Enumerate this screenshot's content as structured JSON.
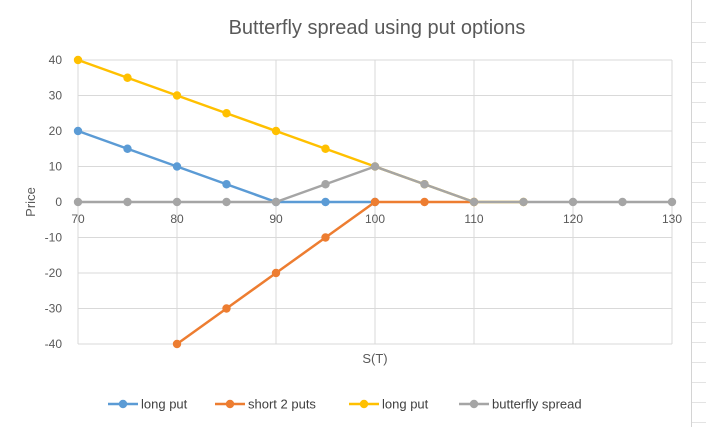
{
  "chart_data": {
    "type": "line",
    "title": "Butterfly spread using put options",
    "xlabel": "S(T)",
    "ylabel": "Price",
    "xlim": [
      70,
      130
    ],
    "ylim": [
      -40,
      40
    ],
    "x_ticks": [
      70,
      80,
      90,
      100,
      110,
      120,
      130
    ],
    "y_ticks": [
      40,
      30,
      20,
      10,
      0,
      -10,
      -20,
      -30,
      -40
    ],
    "grid": true,
    "legend_position": "bottom",
    "series": [
      {
        "name": "long put",
        "color": "#5b9bd5",
        "x": [
          70,
          75,
          80,
          85,
          90,
          95,
          100
        ],
        "y": [
          20,
          15,
          10,
          5,
          0,
          0,
          0
        ]
      },
      {
        "name": "short 2 puts",
        "color": "#ed7d31",
        "x": [
          80,
          85,
          90,
          95,
          100,
          105,
          110
        ],
        "y": [
          -40,
          -30,
          -20,
          -10,
          0,
          0,
          0
        ]
      },
      {
        "name": "long put",
        "color": "#ffc000",
        "x": [
          70,
          75,
          80,
          85,
          90,
          95,
          100,
          105,
          110,
          115
        ],
        "y": [
          40,
          35,
          30,
          25,
          20,
          15,
          10,
          5,
          0,
          0
        ]
      },
      {
        "name": "butterfly spread",
        "color": "#a5a5a5",
        "x": [
          70,
          75,
          80,
          85,
          90,
          95,
          100,
          105,
          110,
          115,
          120,
          125,
          130
        ],
        "y": [
          0,
          0,
          0,
          0,
          0,
          5,
          10,
          5,
          0,
          0,
          0,
          0,
          0
        ]
      }
    ]
  }
}
